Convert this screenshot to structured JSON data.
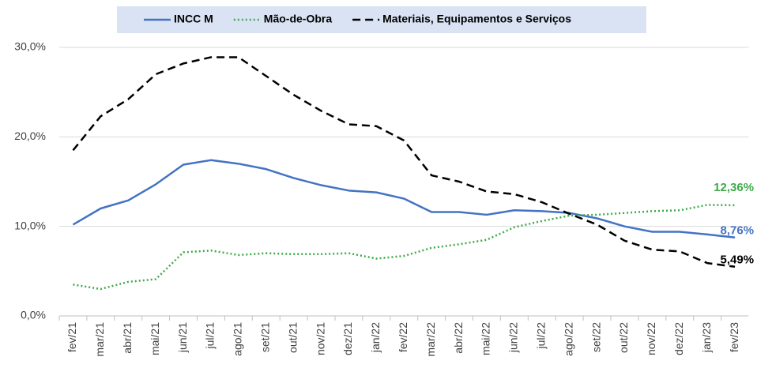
{
  "chart_data": {
    "type": "line",
    "categories": [
      "fev/21",
      "mar/21",
      "abr/21",
      "mai/21",
      "jun/21",
      "jul/21",
      "ago/21",
      "set/21",
      "out/21",
      "nov/21",
      "dez/21",
      "jan/22",
      "fev/22",
      "mar/22",
      "abr/22",
      "mai/22",
      "jun/22",
      "jul/22",
      "ago/22",
      "set/22",
      "out/22",
      "nov/22",
      "dez/22",
      "jan/23",
      "fev/23"
    ],
    "series": [
      {
        "name": "INCC M",
        "color": "#4472c4",
        "style": "solid",
        "values": [
          10.2,
          12.0,
          12.9,
          14.7,
          16.9,
          17.4,
          17.0,
          16.4,
          15.4,
          14.6,
          14.0,
          13.8,
          13.1,
          11.6,
          11.6,
          11.3,
          11.8,
          11.7,
          11.5,
          10.9,
          10.0,
          9.4,
          9.4,
          9.1,
          8.76
        ],
        "value_labels": [
          null,
          null,
          null,
          null,
          null,
          null,
          null,
          null,
          null,
          null,
          null,
          null,
          null,
          null,
          null,
          null,
          null,
          null,
          null,
          null,
          null,
          null,
          null,
          null,
          "8,76%"
        ]
      },
      {
        "name": "Mão-de-Obra",
        "color": "#3daa48",
        "style": "dotted",
        "values": [
          3.5,
          3.0,
          3.8,
          4.1,
          7.1,
          7.3,
          6.8,
          7.0,
          6.9,
          6.9,
          7.0,
          6.4,
          6.7,
          7.6,
          8.0,
          8.5,
          9.9,
          10.6,
          11.2,
          11.3,
          11.5,
          11.7,
          11.8,
          12.4,
          12.36
        ],
        "value_labels": [
          null,
          null,
          null,
          null,
          null,
          null,
          null,
          null,
          null,
          null,
          null,
          null,
          null,
          null,
          null,
          null,
          null,
          null,
          null,
          null,
          null,
          null,
          null,
          null,
          "12,36%"
        ]
      },
      {
        "name": "Materiais, Equipamentos e Serviços",
        "color": "#000000",
        "style": "dashed",
        "values": [
          18.5,
          22.3,
          24.2,
          27.0,
          28.2,
          28.9,
          28.9,
          26.8,
          24.7,
          22.9,
          21.4,
          21.2,
          19.6,
          15.7,
          15.0,
          13.9,
          13.6,
          12.7,
          11.4,
          10.2,
          8.4,
          7.4,
          7.2,
          5.9,
          5.49
        ],
        "value_labels": [
          null,
          null,
          null,
          null,
          null,
          null,
          null,
          null,
          null,
          null,
          null,
          null,
          null,
          null,
          null,
          null,
          null,
          null,
          null,
          null,
          null,
          null,
          null,
          null,
          "5,49%"
        ]
      }
    ],
    "ylim": [
      0,
      30
    ],
    "yticks": [
      {
        "value": 0,
        "label": "0,0%"
      },
      {
        "value": 10,
        "label": "10,0%"
      },
      {
        "value": 20,
        "label": "20,0%"
      },
      {
        "value": 30,
        "label": "30,0%"
      }
    ],
    "grid": true,
    "legend": "top"
  }
}
